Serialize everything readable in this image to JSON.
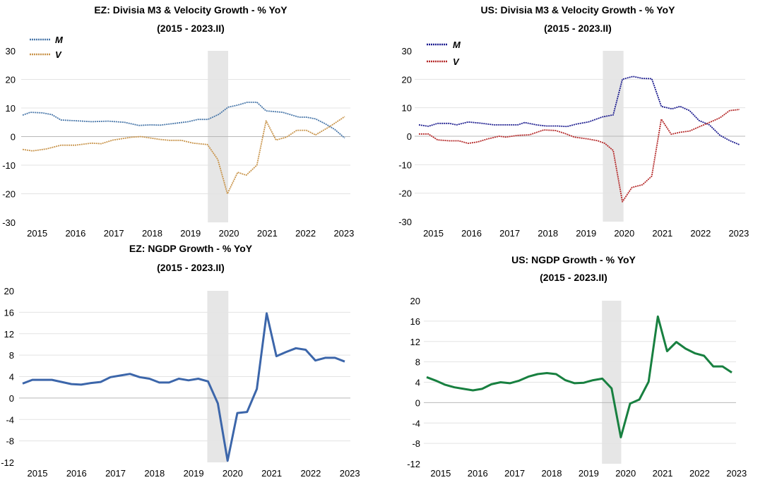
{
  "chart_data": [
    {
      "id": "ez-mv",
      "type": "line",
      "title": "EZ: Divisia M3 & Velocity Growth - % YoY",
      "subtitle": "(2015 - 2023.II)",
      "xlabel": "",
      "ylabel": "",
      "xlim": [
        2015.0,
        2023.4
      ],
      "ylim": [
        -30,
        30
      ],
      "yticks": [
        30,
        20,
        10,
        0,
        -10,
        -20,
        -30
      ],
      "xticks": [
        "2015",
        "2016",
        "2017",
        "2018",
        "2019",
        "2020",
        "2021",
        "2022",
        "2023"
      ],
      "grid": true,
      "legend": "top-left",
      "shaded_period": [
        2019.83,
        2020.36
      ],
      "series": [
        {
          "name": "M",
          "color": "#4a78aa",
          "points": [
            [
              2015.0,
              7.5
            ],
            [
              2015.2,
              8.5
            ],
            [
              2015.51,
              8.3
            ],
            [
              2015.76,
              7.7
            ],
            [
              2016.0,
              5.8
            ],
            [
              2016.43,
              5.5
            ],
            [
              2016.8,
              5.2
            ],
            [
              2017.23,
              5.4
            ],
            [
              2017.66,
              5.0
            ],
            [
              2018.03,
              3.9
            ],
            [
              2018.34,
              4.1
            ],
            [
              2018.59,
              4.0
            ],
            [
              2018.95,
              4.6
            ],
            [
              2019.32,
              5.2
            ],
            [
              2019.57,
              6.0
            ],
            [
              2019.83,
              6.0
            ],
            [
              2020.12,
              7.8
            ],
            [
              2020.36,
              10.3
            ],
            [
              2020.61,
              11.0
            ],
            [
              2020.86,
              12.0
            ],
            [
              2021.11,
              12.0
            ],
            [
              2021.35,
              9.0
            ],
            [
              2021.78,
              8.5
            ],
            [
              2022.03,
              7.5
            ],
            [
              2022.21,
              6.8
            ],
            [
              2022.4,
              6.8
            ],
            [
              2022.64,
              6.2
            ],
            [
              2022.89,
              4.5
            ],
            [
              2023.14,
              2.5
            ],
            [
              2023.4,
              -0.5
            ]
          ]
        },
        {
          "name": "V",
          "color": "#c9954c",
          "points": [
            [
              2015.0,
              -4.5
            ],
            [
              2015.26,
              -5.0
            ],
            [
              2015.63,
              -4.3
            ],
            [
              2016.0,
              -3.0
            ],
            [
              2016.37,
              -3.0
            ],
            [
              2016.8,
              -2.3
            ],
            [
              2017.05,
              -2.5
            ],
            [
              2017.36,
              -1.2
            ],
            [
              2017.85,
              -0.2
            ],
            [
              2018.09,
              0.0
            ],
            [
              2018.59,
              -1.0
            ],
            [
              2018.83,
              -1.3
            ],
            [
              2019.14,
              -1.3
            ],
            [
              2019.45,
              -2.3
            ],
            [
              2019.82,
              -2.8
            ],
            [
              2020.09,
              -8.0
            ],
            [
              2020.34,
              -20.0
            ],
            [
              2020.61,
              -12.5
            ],
            [
              2020.83,
              -13.5
            ],
            [
              2021.11,
              -10.0
            ],
            [
              2021.35,
              5.5
            ],
            [
              2021.61,
              -1.2
            ],
            [
              2021.88,
              -0.2
            ],
            [
              2022.15,
              2.2
            ],
            [
              2022.4,
              2.2
            ],
            [
              2022.64,
              0.6
            ],
            [
              2023.01,
              3.5
            ],
            [
              2023.4,
              7.0
            ]
          ]
        }
      ]
    },
    {
      "id": "us-mv",
      "type": "line",
      "title": "US: Divisia M3 & Velocity Growth - % YoY",
      "subtitle": "(2015 - 2023.II)",
      "xlabel": "",
      "ylabel": "",
      "xlim": [
        2015.0,
        2023.4
      ],
      "ylim": [
        -30,
        30
      ],
      "yticks": [
        30,
        20,
        10,
        0,
        -10,
        -20,
        -30
      ],
      "xticks": [
        "2015",
        "2016",
        "2017",
        "2018",
        "2019",
        "2020",
        "2021",
        "2022",
        "2023"
      ],
      "grid": true,
      "legend": "top-left",
      "shaded_period": [
        2019.82,
        2020.36
      ],
      "series": [
        {
          "name": "M",
          "color": "#1c1c8f",
          "points": [
            [
              2015.0,
              4.0
            ],
            [
              2015.25,
              3.5
            ],
            [
              2015.49,
              4.5
            ],
            [
              2015.8,
              4.5
            ],
            [
              2015.99,
              4.0
            ],
            [
              2016.29,
              5.0
            ],
            [
              2016.6,
              4.6
            ],
            [
              2016.97,
              4.0
            ],
            [
              2017.28,
              4.0
            ],
            [
              2017.59,
              4.0
            ],
            [
              2017.77,
              4.8
            ],
            [
              2018.08,
              4.0
            ],
            [
              2018.33,
              3.6
            ],
            [
              2018.64,
              3.6
            ],
            [
              2018.88,
              3.4
            ],
            [
              2019.13,
              4.3
            ],
            [
              2019.44,
              5.0
            ],
            [
              2019.81,
              6.8
            ],
            [
              2020.09,
              7.5
            ],
            [
              2020.33,
              20.0
            ],
            [
              2020.61,
              21.0
            ],
            [
              2020.86,
              20.3
            ],
            [
              2021.1,
              20.2
            ],
            [
              2021.35,
              10.5
            ],
            [
              2021.63,
              9.6
            ],
            [
              2021.84,
              10.5
            ],
            [
              2022.09,
              9.0
            ],
            [
              2022.34,
              5.5
            ],
            [
              2022.61,
              4.0
            ],
            [
              2022.89,
              0.3
            ],
            [
              2023.14,
              -1.5
            ],
            [
              2023.4,
              -3.0
            ]
          ]
        },
        {
          "name": "V",
          "color": "#b52a2a",
          "points": [
            [
              2015.0,
              0.8
            ],
            [
              2015.25,
              0.8
            ],
            [
              2015.49,
              -1.3
            ],
            [
              2015.8,
              -1.6
            ],
            [
              2016.05,
              -1.6
            ],
            [
              2016.29,
              -2.5
            ],
            [
              2016.54,
              -2.0
            ],
            [
              2016.79,
              -1.0
            ],
            [
              2017.1,
              0.0
            ],
            [
              2017.28,
              -0.3
            ],
            [
              2017.59,
              0.3
            ],
            [
              2017.9,
              0.5
            ],
            [
              2018.27,
              2.2
            ],
            [
              2018.58,
              2.0
            ],
            [
              2018.82,
              1.0
            ],
            [
              2019.07,
              -0.3
            ],
            [
              2019.44,
              -1.0
            ],
            [
              2019.69,
              -1.6
            ],
            [
              2019.87,
              -2.5
            ],
            [
              2020.09,
              -5.0
            ],
            [
              2020.33,
              -23.0
            ],
            [
              2020.58,
              -18.0
            ],
            [
              2020.86,
              -17.0
            ],
            [
              2021.1,
              -14.0
            ],
            [
              2021.35,
              6.0
            ],
            [
              2021.61,
              0.7
            ],
            [
              2021.84,
              1.4
            ],
            [
              2022.09,
              1.8
            ],
            [
              2022.34,
              3.3
            ],
            [
              2022.64,
              5.0
            ],
            [
              2022.89,
              6.5
            ],
            [
              2023.14,
              9.0
            ],
            [
              2023.4,
              9.4
            ]
          ]
        }
      ]
    },
    {
      "id": "ez-ngdp",
      "type": "line",
      "title": "EZ: NGDP Growth - % YoY",
      "subtitle": "(2015 - 2023.II)",
      "xlabel": "",
      "ylabel": "",
      "xlim": [
        2015.0,
        2023.25
      ],
      "ylim": [
        -12,
        20
      ],
      "yticks": [
        20,
        16,
        12,
        8,
        4,
        0,
        -4,
        -8,
        -12
      ],
      "xticks": [
        "2015",
        "2016",
        "2017",
        "2018",
        "2019",
        "2020",
        "2021",
        "2022",
        "2023"
      ],
      "grid": true,
      "legend": "none",
      "shaded_period": [
        2019.73,
        2020.27
      ],
      "x_start": 2015.0,
      "x_step": 0.25,
      "series": [
        {
          "name": "NGDP",
          "color": "#3c66aa",
          "values": [
            2.7,
            3.4,
            3.4,
            3.4,
            3.0,
            2.6,
            2.5,
            2.8,
            3.0,
            3.9,
            4.2,
            4.5,
            3.9,
            3.6,
            2.9,
            2.9,
            3.6,
            3.3,
            3.6,
            3.1,
            -1.0,
            -11.7,
            -2.8,
            -2.6,
            1.7,
            15.8,
            7.8,
            8.6,
            9.3,
            9.0,
            7.0,
            7.5,
            7.5,
            6.8
          ]
        }
      ]
    },
    {
      "id": "us-ngdp",
      "type": "line",
      "title": "US: NGDP Growth - % YoY",
      "subtitle": "(2015 - 2023.II)",
      "xlabel": "",
      "ylabel": "",
      "xlim": [
        2015.0,
        2023.25
      ],
      "ylim": [
        -12,
        20
      ],
      "yticks": [
        20,
        16,
        12,
        8,
        4,
        0,
        -4,
        -8,
        -12
      ],
      "xticks": [
        "2015",
        "2016",
        "2017",
        "2018",
        "2019",
        "2020",
        "2021",
        "2022",
        "2023"
      ],
      "grid": true,
      "legend": "none",
      "shaded_period": [
        2019.74,
        2020.26
      ],
      "x_start": 2015.0,
      "x_step": 0.25,
      "series": [
        {
          "name": "NGDP",
          "color": "#188040",
          "values": [
            5.0,
            4.3,
            3.5,
            3.0,
            2.7,
            2.4,
            2.7,
            3.6,
            4.0,
            3.8,
            4.3,
            5.1,
            5.6,
            5.8,
            5.6,
            4.4,
            3.8,
            3.9,
            4.4,
            4.7,
            2.8,
            -6.8,
            -0.2,
            0.6,
            4.1,
            16.9,
            10.1,
            11.9,
            10.6,
            9.7,
            9.2,
            7.1,
            7.1,
            5.9
          ]
        }
      ]
    }
  ]
}
